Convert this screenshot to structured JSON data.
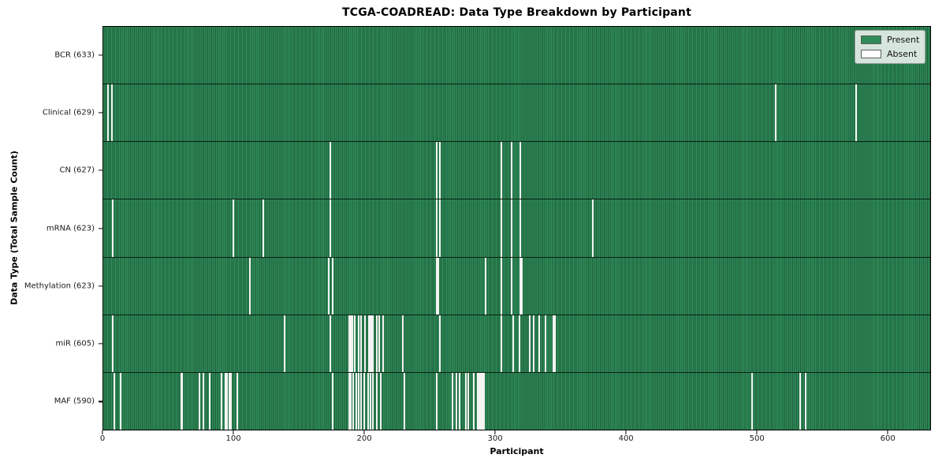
{
  "chart_data": {
    "type": "heatmap",
    "title": "TCGA-COADREAD: Data Type Breakdown by Participant",
    "xlabel": "Participant",
    "ylabel": "Data Type (Total Sample Count)",
    "n_participants": 633,
    "x_range": [
      0,
      633
    ],
    "x_ticks": [
      0,
      100,
      200,
      300,
      400,
      500,
      600
    ],
    "grid": false,
    "legend_position": "upper-right",
    "colors": {
      "present": "#2f8b58",
      "present_edge": "#1e5c3a",
      "absent": "#f4f4f2"
    },
    "legend": [
      {
        "label": "Present",
        "color": "#2f8b58"
      },
      {
        "label": "Absent",
        "color": "#ffffff"
      }
    ],
    "rows": [
      {
        "name": "BCR",
        "label": "BCR (633)",
        "present_count": 633,
        "absent_participants": []
      },
      {
        "name": "Clinical",
        "label": "Clinical (629)",
        "present_count": 629,
        "absent_participants": [
          3,
          6,
          514,
          576
        ]
      },
      {
        "name": "CN",
        "label": "CN (627)",
        "present_count": 627,
        "absent_participants": [
          173,
          255,
          257,
          304,
          312,
          319
        ]
      },
      {
        "name": "mRNA",
        "label": "mRNA (623)",
        "present_count": 623,
        "absent_participants": [
          7,
          99,
          122,
          173,
          255,
          257,
          304,
          312,
          319,
          374
        ]
      },
      {
        "name": "Methylation",
        "label": "Methylation (623)",
        "present_count": 623,
        "absent_participants": [
          112,
          172,
          175,
          255,
          256,
          292,
          304,
          312,
          319,
          320
        ]
      },
      {
        "name": "miR",
        "label": "miR (605)",
        "present_count": 605,
        "absent_participants": [
          7,
          138,
          173,
          188,
          189,
          190,
          192,
          195,
          197,
          200,
          203,
          204,
          205,
          206,
          209,
          211,
          214,
          229,
          257,
          304,
          313,
          318,
          326,
          329,
          333,
          338,
          344,
          345
        ]
      },
      {
        "name": "MAF",
        "label": "MAF (590)",
        "present_count": 590,
        "absent_participants": [
          8,
          13,
          59,
          60,
          73,
          76,
          81,
          90,
          93,
          94,
          96,
          97,
          102,
          175,
          188,
          189,
          191,
          193,
          195,
          197,
          199,
          202,
          204,
          206,
          209,
          212,
          230,
          255,
          267,
          270,
          272,
          277,
          279,
          283,
          286,
          287,
          288,
          289,
          290,
          291,
          496,
          533,
          537
        ]
      }
    ]
  }
}
